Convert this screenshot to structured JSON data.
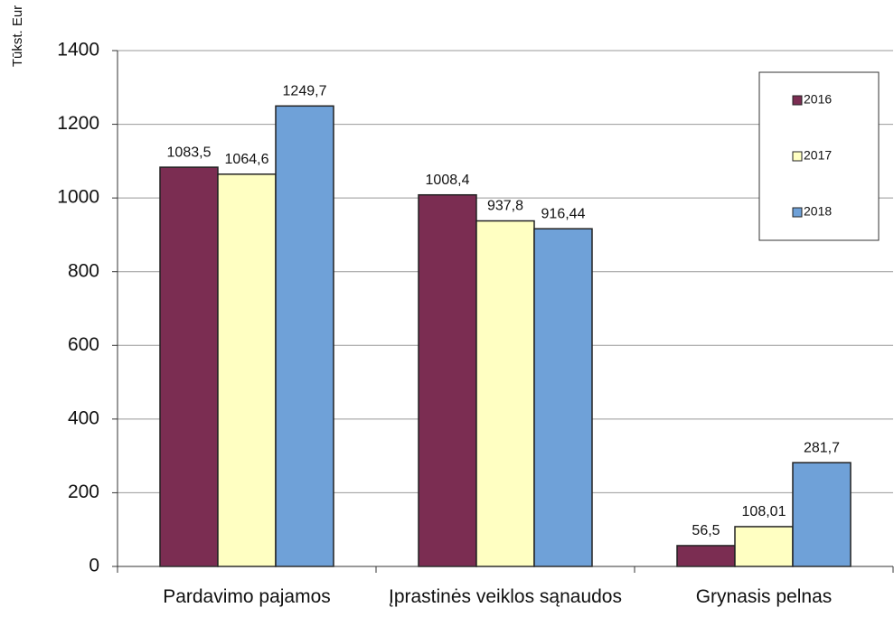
{
  "chart_data": {
    "type": "bar",
    "y_label": "Tūkst. Eur",
    "categories": [
      "Pardavimo pajamos",
      "Įprastinės veiklos sąnaudos",
      "Grynasis pelnas"
    ],
    "series": [
      {
        "name": "2016",
        "color": "#7b2d52",
        "values": [
          1083.5,
          1008.4,
          56.5
        ],
        "value_labels": [
          "1083,5",
          "1008,4",
          "56,5"
        ]
      },
      {
        "name": "2017",
        "color": "#ffffc2",
        "values": [
          1064.6,
          937.8,
          108.01
        ],
        "value_labels": [
          "1064,6",
          "937,8",
          "108,01"
        ]
      },
      {
        "name": "2018",
        "color": "#6fa1d8",
        "values": [
          1249.7,
          916.44,
          281.7
        ],
        "value_labels": [
          "1249,7",
          "916,44",
          "281,7"
        ]
      }
    ],
    "ylim": [
      0,
      1400
    ],
    "yticks": [
      0,
      200,
      400,
      600,
      800,
      1000,
      1200,
      1400
    ],
    "grid": true,
    "legend": "upper right"
  }
}
